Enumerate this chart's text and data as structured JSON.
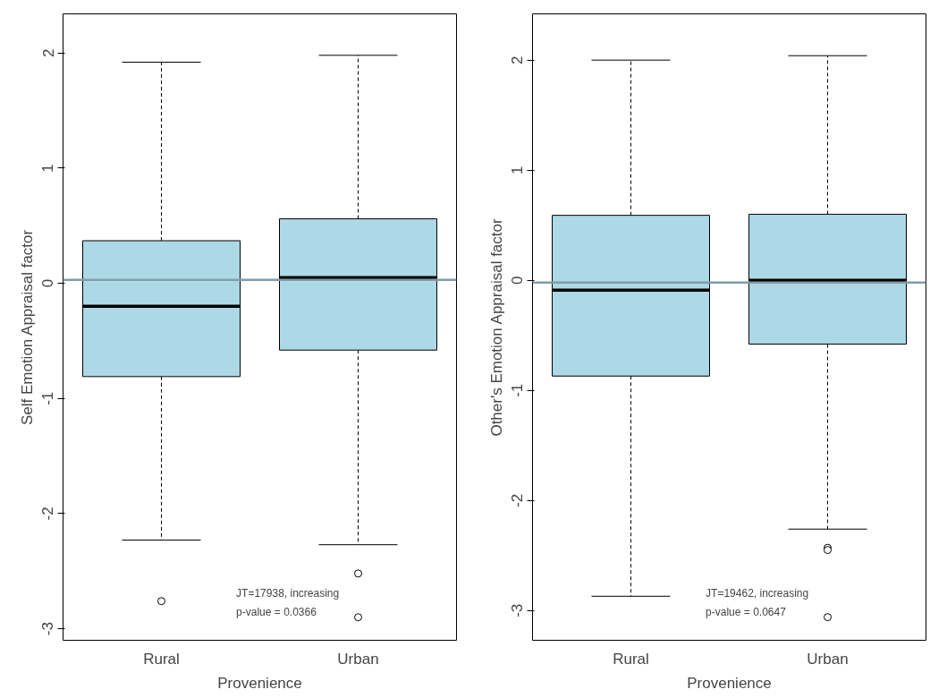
{
  "chart_data": [
    {
      "type": "box",
      "categories": [
        "Rural",
        "Urban"
      ],
      "xlabel": "Provenience",
      "ylabel": "Self Emotion Appraisal factor",
      "color": "#add8e6",
      "ylim": [
        -3.1,
        2.34
      ],
      "yticks": [
        -3,
        -2,
        -1,
        0,
        1,
        2
      ],
      "grid": false,
      "boxes": [
        {
          "low": -2.23,
          "q1": -0.81,
          "median": -0.2,
          "q3": 0.37,
          "high": 1.92,
          "outliers": [
            -2.76
          ]
        },
        {
          "low": -2.27,
          "q1": -0.58,
          "median": 0.05,
          "q3": 0.56,
          "high": 1.98,
          "outliers": [
            -2.52,
            -2.9
          ]
        }
      ],
      "ref_lines": [
        {
          "axis": "y",
          "value": 0.03,
          "color": "#7f9ea8"
        }
      ],
      "annotations": [
        "JT=17938, increasing",
        "p-value = 0.0366"
      ]
    },
    {
      "type": "box",
      "categories": [
        "Rural",
        "Urban"
      ],
      "xlabel": "Provenience",
      "ylabel": "Other's Emotion Appraisal factor",
      "color": "#add8e6",
      "ylim": [
        -3.27,
        2.42
      ],
      "yticks": [
        -3,
        -2,
        -1,
        0,
        1,
        2
      ],
      "grid": false,
      "boxes": [
        {
          "low": -2.87,
          "q1": -0.87,
          "median": -0.09,
          "q3": 0.59,
          "high": 2.0
        },
        {
          "low": -2.26,
          "q1": -0.58,
          "median": 0.0,
          "q3": 0.6,
          "high": 2.04,
          "outliers": [
            -2.43,
            -2.45,
            -3.06
          ]
        }
      ],
      "ref_lines": [
        {
          "axis": "y",
          "value": -0.02,
          "color": "#7f9ea8"
        }
      ],
      "annotations": [
        "JT=19462, increasing",
        "p-value = 0.0647"
      ]
    }
  ]
}
